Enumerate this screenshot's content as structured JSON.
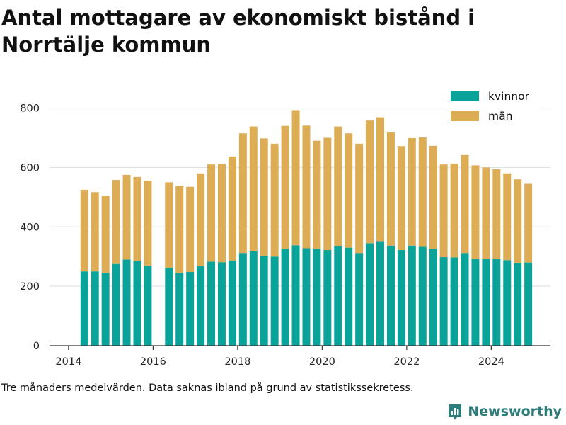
{
  "title": "Antal mottagare av ekonomiskt bistånd i Norrtälje kommun",
  "footnote": "Tre månaders medelvärden. Data saknas ibland på grund av statistikssekretess.",
  "brand": "Newsworthy",
  "colors": {
    "kvinnor": "#0aa39a",
    "man": "#dcad55",
    "grid": "#dddddd",
    "axis": "#333333",
    "brand": "#2e7d7a"
  },
  "chart_data": {
    "type": "bar",
    "stacked": true,
    "xlim": [
      2013.55,
      2025.4
    ],
    "ylim": [
      0,
      830
    ],
    "x_ticks": [
      2014,
      2016,
      2018,
      2020,
      2022,
      2024
    ],
    "x_tick_labels": [
      "2014",
      "2016",
      "2018",
      "2020",
      "2022",
      "2024"
    ],
    "y_ticks": [
      0,
      200,
      400,
      600,
      800
    ],
    "y_tick_labels": [
      "0",
      "200",
      "400",
      "600",
      "800"
    ],
    "grid": true,
    "legend_position": "top-right",
    "x": [
      2014.375,
      2014.625,
      2014.875,
      2015.125,
      2015.375,
      2015.625,
      2015.875,
      2016.375,
      2016.625,
      2016.875,
      2017.125,
      2017.375,
      2017.625,
      2017.875,
      2018.125,
      2018.375,
      2018.625,
      2018.875,
      2019.125,
      2019.375,
      2019.625,
      2019.875,
      2020.125,
      2020.375,
      2020.625,
      2020.875,
      2021.125,
      2021.375,
      2021.625,
      2021.875,
      2022.125,
      2022.375,
      2022.625,
      2022.875,
      2023.125,
      2023.375,
      2023.625,
      2023.875,
      2024.125,
      2024.375,
      2024.625,
      2024.875
    ],
    "series": [
      {
        "name": "kvinnor",
        "values": [
          250,
          250,
          245,
          275,
          290,
          285,
          270,
          262,
          245,
          248,
          267,
          283,
          281,
          287,
          312,
          318,
          303,
          300,
          325,
          338,
          328,
          325,
          322,
          335,
          330,
          312,
          345,
          352,
          337,
          322,
          337,
          333,
          325,
          298,
          297,
          312,
          292,
          292,
          292,
          288,
          277,
          280
        ]
      },
      {
        "name": "män",
        "values": [
          275,
          267,
          260,
          283,
          285,
          283,
          285,
          288,
          293,
          287,
          313,
          327,
          330,
          350,
          403,
          420,
          395,
          380,
          415,
          455,
          413,
          365,
          378,
          403,
          385,
          368,
          413,
          417,
          381,
          350,
          362,
          368,
          348,
          312,
          315,
          330,
          315,
          308,
          302,
          292,
          283,
          265
        ]
      }
    ]
  }
}
